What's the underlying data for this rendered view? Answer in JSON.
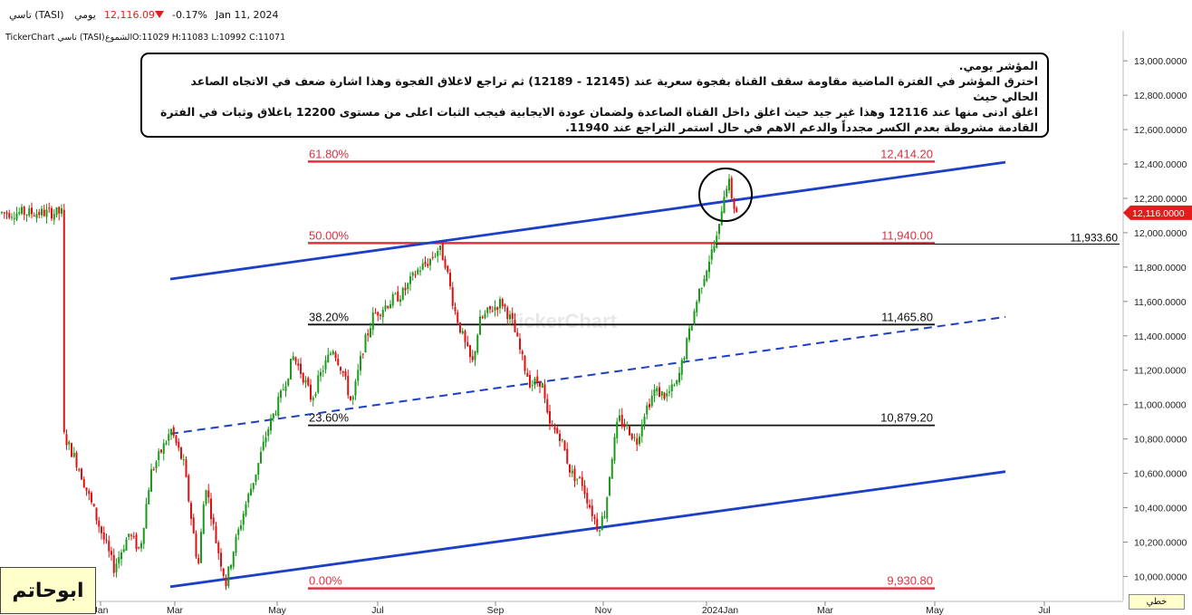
{
  "header": {
    "symbol": "تاسي (TASI)",
    "period": "يومي",
    "price": "12,116.09",
    "change_pct": "-0.17%",
    "date": "Jan 11, 2024",
    "down_arrow_icon": "triangle-down"
  },
  "subheader": {
    "source": "TickerChart تاسي (TASI)",
    "candles_label": "الشموع",
    "ohlc": "O:11029  H:11083  L:10992  C:11071"
  },
  "annotation": {
    "line1": "المؤشر يومي.",
    "line2": "اخترق المؤشر في الفترة الماضية مقاومة سقف القناة بفجوة سعرية عند (12145 - 12189) ثم تراجع لاغلاق الفجوة وهذا اشارة ضعف في الاتجاه الصاعد الحالي حيث",
    "line3": "اغلق ادنى منها عند 12116 وهذا غير جيد حيث اغلق داخل القناة الصاعدة ولضمان عودة الايجابية فيجب الثبات اعلى من مستوى 12200 باغلاق وثبات في الفترة",
    "line4": "القادمة مشروطة بعدم الكسر مجدداً والدعم الاهم في حال استمر التراجع عند 11940."
  },
  "author": "ابوحاتم",
  "watermark": "TickerChart",
  "scale_button": "خطي",
  "colors": {
    "bull": "#1a9a1a",
    "bear": "#e01010",
    "channel": "#1c3fc8",
    "fib_red": "#e03040",
    "fib_black": "#111111",
    "price_tag": "#e21b1b"
  },
  "chart_data": {
    "type": "candlestick",
    "y_axis": {
      "ylim": [
        9860,
        13080
      ],
      "ticks": [
        "13,000.0000",
        "12,800.0000",
        "12,600.0000",
        "12,400.0000",
        "12,200.0000",
        "12,000.0000",
        "11,800.0000",
        "11,600.0000",
        "11,400.0000",
        "11,200.0000",
        "11,000.0000",
        "10,800.0000",
        "10,600.0000",
        "10,400.0000",
        "10,200.0000",
        "10,000.0000"
      ],
      "tick_values": [
        13000,
        12800,
        12600,
        12400,
        12200,
        12000,
        11800,
        11600,
        11400,
        11200,
        11000,
        10800,
        10600,
        10400,
        10200,
        10000
      ]
    },
    "x_axis": {
      "ticks": [
        "Jan",
        "Mar",
        "May",
        "Jul",
        "Sep",
        "Nov",
        "2024Jan",
        "Mar",
        "May",
        "Jul"
      ]
    },
    "last_price": {
      "label": "12,116.0000",
      "value": 12116
    },
    "horizontal_marker": {
      "label": "11,933.60",
      "value": 11933.6
    },
    "fibonacci": [
      {
        "pct": "61.80%",
        "label": "12,414.20",
        "value": 12414.2,
        "color": "red"
      },
      {
        "pct": "50.00%",
        "label": "11,940.00",
        "value": 11940.0,
        "color": "red"
      },
      {
        "pct": "38.20%",
        "label": "11,465.80",
        "value": 11465.8,
        "color": "black"
      },
      {
        "pct": "23.60%",
        "label": "10,879.20",
        "value": 10879.2,
        "color": "black"
      },
      {
        "pct": "0.00%",
        "label": "9,930.80",
        "value": 9930.8,
        "color": "red"
      }
    ],
    "channel": {
      "lower": {
        "from": [
          "Feb-24",
          9940
        ],
        "to": [
          "2024-Aug-15",
          10610
        ]
      },
      "upper": {
        "from": [
          "Feb-24",
          11730
        ],
        "to": [
          "2024-Aug-15",
          12410
        ]
      },
      "middle_dashed": {
        "from": [
          "Feb-24",
          10830
        ],
        "to": [
          "2024-Aug-15",
          11510
        ]
      }
    },
    "price_path": [
      [
        "Jan-01",
        10850
      ],
      [
        "Jan-10",
        10650
      ],
      [
        "Jan-20",
        10350
      ],
      [
        "Jan-30",
        10050
      ],
      [
        "Feb-08",
        10250
      ],
      [
        "Feb-14",
        10150
      ],
      [
        "Feb-20",
        10600
      ],
      [
        "Mar-01",
        10850
      ],
      [
        "Mar-08",
        10650
      ],
      [
        "Mar-12",
        10350
      ],
      [
        "Mar-16",
        10050
      ],
      [
        "Mar-20",
        10550
      ],
      [
        "Mar-26",
        10200
      ],
      [
        "Apr-01",
        9960
      ],
      [
        "Apr-05",
        10150
      ],
      [
        "Apr-12",
        10420
      ],
      [
        "Apr-18",
        10620
      ],
      [
        "Apr-24",
        10850
      ],
      [
        "May-01",
        11050
      ],
      [
        "May-08",
        11280
      ],
      [
        "May-14",
        11150
      ],
      [
        "May-18",
        11030
      ],
      [
        "May-24",
        11200
      ],
      [
        "May-30",
        11330
      ],
      [
        "Jun-05",
        11190
      ],
      [
        "Jun-10",
        11000
      ],
      [
        "Jun-16",
        11320
      ],
      [
        "Jun-22",
        11520
      ],
      [
        "Jul-01",
        11600
      ],
      [
        "Jul-08",
        11650
      ],
      [
        "Jul-16",
        11780
      ],
      [
        "Jul-22",
        11830
      ],
      [
        "Jul-28",
        11910
      ],
      [
        "Aug-01",
        11830
      ],
      [
        "Aug-06",
        11560
      ],
      [
        "Aug-12",
        11350
      ],
      [
        "Aug-16",
        11230
      ],
      [
        "Aug-20",
        11480
      ],
      [
        "Aug-25",
        11540
      ],
      [
        "Sep-02",
        11600
      ],
      [
        "Sep-08",
        11470
      ],
      [
        "Sep-14",
        11240
      ],
      [
        "Sep-18",
        11120
      ],
      [
        "Sep-24",
        11140
      ],
      [
        "Sep-28",
        10880
      ],
      [
        "Oct-04",
        10820
      ],
      [
        "Oct-10",
        10600
      ],
      [
        "Oct-16",
        10550
      ],
      [
        "Oct-20",
        10420
      ],
      [
        "Oct-25",
        10280
      ],
      [
        "Oct-29",
        10380
      ],
      [
        "Nov-02",
        10680
      ],
      [
        "Nov-06",
        10920
      ],
      [
        "Nov-12",
        10850
      ],
      [
        "Nov-16",
        10780
      ],
      [
        "Nov-20",
        10950
      ],
      [
        "Nov-26",
        11080
      ],
      [
        "Dec-02",
        11050
      ],
      [
        "Dec-08",
        11120
      ],
      [
        "Dec-14",
        11380
      ],
      [
        "Dec-20",
        11650
      ],
      [
        "Dec-26",
        11850
      ],
      [
        "Dec-31",
        11990
      ],
      [
        "2024-Jan-03",
        12200
      ],
      [
        "2024-Jan-06",
        12310
      ],
      [
        "2024-Jan-09",
        12160
      ],
      [
        "2024-Jan-11",
        12116
      ]
    ]
  }
}
